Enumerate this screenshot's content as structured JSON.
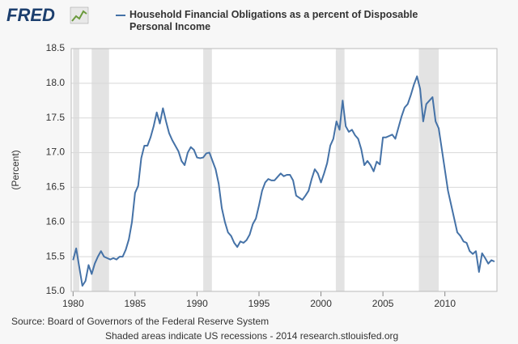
{
  "chart_data": {
    "type": "line",
    "logo": "FRED",
    "ylabel": "(Percent)",
    "source": "Source: Board of Governors of the Federal Reserve System",
    "note": "Shaded areas indicate US recessions - 2014 research.stlouisfed.org",
    "xlim": [
      1979.85,
      2014.2
    ],
    "xticks": [
      1980,
      1985,
      1990,
      1995,
      2000,
      2005,
      2010
    ],
    "ylim": [
      15,
      18.5
    ],
    "yticks": [
      {
        "value": 15,
        "label": "15.0"
      },
      15.5,
      {
        "value": 16,
        "label": "16.0"
      },
      16.5,
      {
        "value": 17,
        "label": "17.0"
      },
      17.5,
      {
        "value": 18,
        "label": "18.0"
      },
      18.5
    ],
    "grid": true,
    "recession_color": "#e3e3e3",
    "recessions": [
      [
        1980.0,
        1980.5
      ],
      [
        1981.5,
        1982.9
      ],
      [
        1990.5,
        1991.2
      ],
      [
        2001.2,
        2001.9
      ],
      [
        2007.9,
        2009.5
      ]
    ],
    "x": [
      1980.0,
      1980.25,
      1980.5,
      1980.75,
      1981.0,
      1981.25,
      1981.5,
      1981.75,
      1982.0,
      1982.25,
      1982.5,
      1982.75,
      1983.0,
      1983.25,
      1983.5,
      1983.75,
      1984.0,
      1984.25,
      1984.5,
      1984.75,
      1985.0,
      1985.25,
      1985.5,
      1985.75,
      1986.0,
      1986.25,
      1986.5,
      1986.75,
      1987.0,
      1987.25,
      1987.5,
      1987.75,
      1988.0,
      1988.25,
      1988.5,
      1988.75,
      1989.0,
      1989.25,
      1989.5,
      1989.75,
      1990.0,
      1990.25,
      1990.5,
      1990.75,
      1991.0,
      1991.25,
      1991.5,
      1991.75,
      1992.0,
      1992.25,
      1992.5,
      1992.75,
      1993.0,
      1993.25,
      1993.5,
      1993.75,
      1994.0,
      1994.25,
      1994.5,
      1994.75,
      1995.0,
      1995.25,
      1995.5,
      1995.75,
      1996.0,
      1996.25,
      1996.5,
      1996.75,
      1997.0,
      1997.25,
      1997.5,
      1997.75,
      1998.0,
      1998.25,
      1998.5,
      1998.75,
      1999.0,
      1999.25,
      1999.5,
      1999.75,
      2000.0,
      2000.25,
      2000.5,
      2000.75,
      2001.0,
      2001.25,
      2001.5,
      2001.75,
      2002.0,
      2002.25,
      2002.5,
      2002.75,
      2003.0,
      2003.25,
      2003.5,
      2003.75,
      2004.0,
      2004.25,
      2004.5,
      2004.75,
      2005.0,
      2005.25,
      2005.5,
      2005.75,
      2006.0,
      2006.25,
      2006.5,
      2006.75,
      2007.0,
      2007.25,
      2007.5,
      2007.75,
      2008.0,
      2008.25,
      2008.5,
      2008.75,
      2009.0,
      2009.25,
      2009.5,
      2009.75,
      2010.0,
      2010.25,
      2010.5,
      2010.75,
      2011.0,
      2011.25,
      2011.5,
      2011.75,
      2012.0,
      2012.25,
      2012.5,
      2012.75,
      2013.0,
      2013.25,
      2013.5,
      2013.75,
      2014.0
    ],
    "series": [
      {
        "name": "Household Financial Obligations as a percent of Disposable Personal Income",
        "color": "#4572a7",
        "values": [
          15.45,
          15.62,
          15.35,
          15.08,
          15.15,
          15.38,
          15.25,
          15.4,
          15.5,
          15.58,
          15.5,
          15.48,
          15.46,
          15.48,
          15.46,
          15.5,
          15.5,
          15.6,
          15.75,
          16.0,
          16.42,
          16.52,
          16.92,
          17.1,
          17.1,
          17.22,
          17.38,
          17.58,
          17.42,
          17.64,
          17.45,
          17.28,
          17.18,
          17.1,
          17.02,
          16.88,
          16.82,
          17.0,
          17.08,
          17.04,
          16.93,
          16.92,
          16.93,
          16.99,
          17.0,
          16.88,
          16.76,
          16.55,
          16.2,
          16.0,
          15.85,
          15.8,
          15.7,
          15.64,
          15.72,
          15.7,
          15.74,
          15.82,
          15.97,
          16.05,
          16.24,
          16.45,
          16.57,
          16.62,
          16.6,
          16.6,
          16.65,
          16.7,
          16.66,
          16.68,
          16.68,
          16.6,
          16.38,
          16.35,
          16.32,
          16.38,
          16.45,
          16.62,
          16.76,
          16.7,
          16.57,
          16.7,
          16.85,
          17.1,
          17.2,
          17.45,
          17.33,
          17.75,
          17.38,
          17.3,
          17.33,
          17.25,
          17.2,
          17.05,
          16.82,
          16.88,
          16.82,
          16.73,
          16.87,
          16.83,
          17.22,
          17.22,
          17.24,
          17.26,
          17.2,
          17.36,
          17.52,
          17.65,
          17.7,
          17.83,
          17.98,
          18.1,
          17.92,
          17.45,
          17.7,
          17.75,
          17.8,
          17.45,
          17.35,
          17.05,
          16.75,
          16.45,
          16.25,
          16.05,
          15.85,
          15.8,
          15.72,
          15.7,
          15.58,
          15.54,
          15.58,
          15.28,
          15.55,
          15.48,
          15.4,
          15.45,
          15.43
        ]
      }
    ]
  }
}
